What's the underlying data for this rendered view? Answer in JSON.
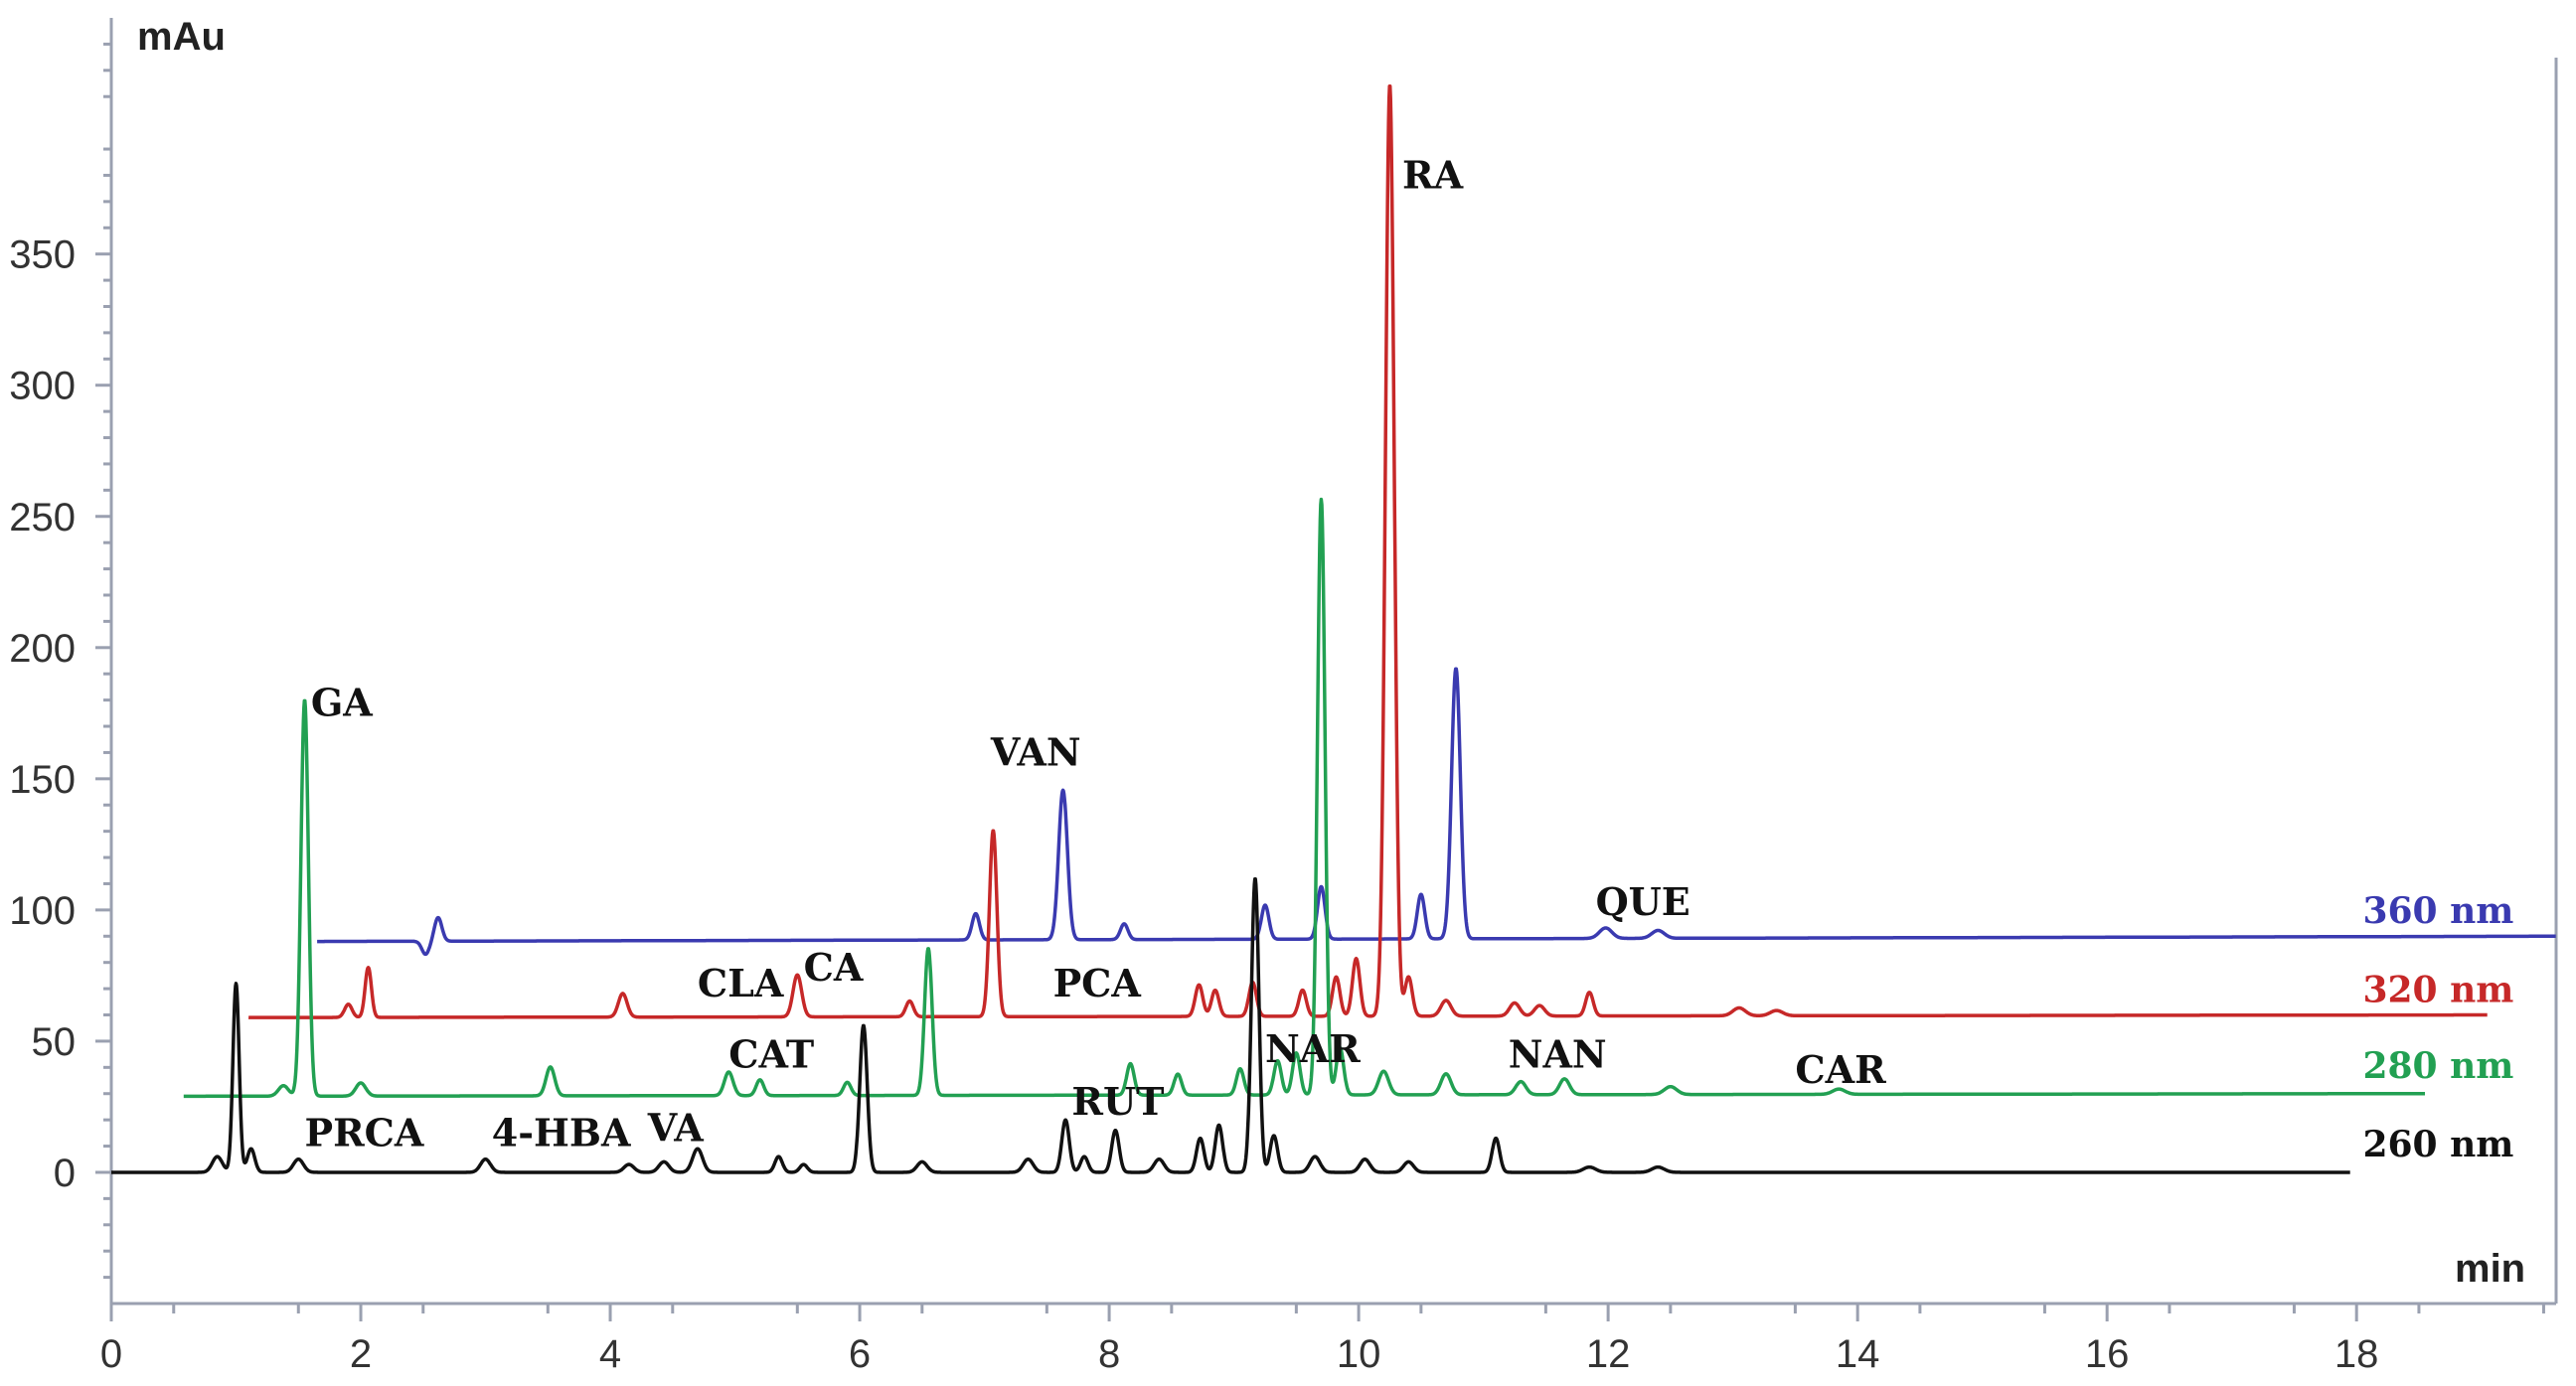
{
  "chart_data": {
    "type": "line",
    "title": "",
    "xlabel": "min",
    "ylabel": "mAu",
    "xlim": [
      0,
      19.6
    ],
    "ylim": [
      -50,
      440
    ],
    "x_ticks": [
      "0",
      "2",
      "4",
      "6",
      "8",
      "10",
      "12",
      "14",
      "16",
      "18"
    ],
    "y_ticks": [
      "0",
      "50",
      "100",
      "150",
      "200",
      "250",
      "300",
      "350"
    ],
    "grid": false,
    "series": [
      {
        "name": "360 nm",
        "color": "#3a3ab0",
        "baseline": 88,
        "end_value": 90,
        "x_range": [
          1.65,
          19.6
        ],
        "peaks": [
          {
            "x": 2.52,
            "y": 83,
            "w": 0.03
          },
          {
            "x": 2.62,
            "y": 97,
            "w": 0.03
          },
          {
            "x": 6.93,
            "y": 98,
            "w": 0.03
          },
          {
            "x": 7.63,
            "y": 145,
            "w": 0.035
          },
          {
            "x": 8.12,
            "y": 94,
            "w": 0.03
          },
          {
            "x": 9.25,
            "y": 101,
            "w": 0.03
          },
          {
            "x": 9.7,
            "y": 108,
            "w": 0.03
          },
          {
            "x": 10.5,
            "y": 105,
            "w": 0.03
          },
          {
            "x": 10.78,
            "y": 191,
            "w": 0.035
          },
          {
            "x": 11.98,
            "y": 92,
            "w": 0.05
          },
          {
            "x": 12.4,
            "y": 91,
            "w": 0.05
          }
        ]
      },
      {
        "name": "320 nm",
        "color": "#c62828",
        "baseline": 59,
        "end_value": 60,
        "x_range": [
          1.1,
          19.05
        ],
        "peaks": [
          {
            "x": 1.9,
            "y": 64,
            "w": 0.03
          },
          {
            "x": 2.06,
            "y": 78,
            "w": 0.025
          },
          {
            "x": 4.1,
            "y": 68,
            "w": 0.035
          },
          {
            "x": 5.5,
            "y": 75,
            "w": 0.035
          },
          {
            "x": 6.4,
            "y": 65,
            "w": 0.03
          },
          {
            "x": 7.07,
            "y": 130,
            "w": 0.03
          },
          {
            "x": 8.72,
            "y": 71,
            "w": 0.03
          },
          {
            "x": 8.85,
            "y": 69,
            "w": 0.03
          },
          {
            "x": 9.15,
            "y": 72,
            "w": 0.03
          },
          {
            "x": 9.55,
            "y": 69,
            "w": 0.03
          },
          {
            "x": 9.82,
            "y": 74,
            "w": 0.03
          },
          {
            "x": 9.98,
            "y": 81,
            "w": 0.03
          },
          {
            "x": 10.25,
            "y": 414,
            "w": 0.035
          },
          {
            "x": 10.4,
            "y": 74,
            "w": 0.03
          },
          {
            "x": 10.7,
            "y": 65,
            "w": 0.04
          },
          {
            "x": 11.25,
            "y": 64,
            "w": 0.04
          },
          {
            "x": 11.45,
            "y": 63,
            "w": 0.04
          },
          {
            "x": 11.85,
            "y": 68,
            "w": 0.03
          },
          {
            "x": 13.05,
            "y": 62,
            "w": 0.05
          },
          {
            "x": 13.35,
            "y": 61,
            "w": 0.05
          }
        ]
      },
      {
        "name": "280 nm",
        "color": "#22a052",
        "baseline": 29,
        "end_value": 30,
        "x_range": [
          0.58,
          18.55
        ],
        "peaks": [
          {
            "x": 1.38,
            "y": 33,
            "w": 0.04
          },
          {
            "x": 1.55,
            "y": 180,
            "w": 0.03
          },
          {
            "x": 2.0,
            "y": 34,
            "w": 0.04
          },
          {
            "x": 3.52,
            "y": 40,
            "w": 0.035
          },
          {
            "x": 4.95,
            "y": 38,
            "w": 0.035
          },
          {
            "x": 5.2,
            "y": 35,
            "w": 0.03
          },
          {
            "x": 5.9,
            "y": 34,
            "w": 0.03
          },
          {
            "x": 6.55,
            "y": 85,
            "w": 0.03
          },
          {
            "x": 8.17,
            "y": 41,
            "w": 0.03
          },
          {
            "x": 8.55,
            "y": 37,
            "w": 0.03
          },
          {
            "x": 9.05,
            "y": 39,
            "w": 0.03
          },
          {
            "x": 9.35,
            "y": 42,
            "w": 0.03
          },
          {
            "x": 9.5,
            "y": 45,
            "w": 0.03
          },
          {
            "x": 9.7,
            "y": 256,
            "w": 0.03
          },
          {
            "x": 9.85,
            "y": 47,
            "w": 0.03
          },
          {
            "x": 10.2,
            "y": 38,
            "w": 0.04
          },
          {
            "x": 10.7,
            "y": 37,
            "w": 0.04
          },
          {
            "x": 11.3,
            "y": 34,
            "w": 0.04
          },
          {
            "x": 11.65,
            "y": 35,
            "w": 0.04
          },
          {
            "x": 12.5,
            "y": 32,
            "w": 0.05
          },
          {
            "x": 13.85,
            "y": 31,
            "w": 0.05
          }
        ]
      },
      {
        "name": "260 nm",
        "color": "#111111",
        "baseline": 0,
        "end_value": 0,
        "x_range": [
          0.0,
          17.95
        ],
        "peaks": [
          {
            "x": 0.85,
            "y": 6,
            "w": 0.04
          },
          {
            "x": 1.0,
            "y": 72,
            "w": 0.025
          },
          {
            "x": 1.12,
            "y": 9,
            "w": 0.03
          },
          {
            "x": 1.5,
            "y": 5,
            "w": 0.04
          },
          {
            "x": 3.0,
            "y": 5,
            "w": 0.04
          },
          {
            "x": 4.15,
            "y": 3,
            "w": 0.04
          },
          {
            "x": 4.43,
            "y": 4,
            "w": 0.04
          },
          {
            "x": 4.7,
            "y": 9,
            "w": 0.04
          },
          {
            "x": 5.35,
            "y": 6,
            "w": 0.03
          },
          {
            "x": 5.55,
            "y": 3,
            "w": 0.03
          },
          {
            "x": 6.03,
            "y": 56,
            "w": 0.03
          },
          {
            "x": 6.5,
            "y": 4,
            "w": 0.04
          },
          {
            "x": 7.35,
            "y": 5,
            "w": 0.04
          },
          {
            "x": 7.65,
            "y": 20,
            "w": 0.03
          },
          {
            "x": 7.8,
            "y": 6,
            "w": 0.03
          },
          {
            "x": 8.05,
            "y": 16,
            "w": 0.03
          },
          {
            "x": 8.4,
            "y": 5,
            "w": 0.04
          },
          {
            "x": 8.73,
            "y": 13,
            "w": 0.03
          },
          {
            "x": 8.88,
            "y": 18,
            "w": 0.03
          },
          {
            "x": 9.17,
            "y": 112,
            "w": 0.03
          },
          {
            "x": 9.32,
            "y": 14,
            "w": 0.03
          },
          {
            "x": 9.65,
            "y": 6,
            "w": 0.04
          },
          {
            "x": 10.05,
            "y": 5,
            "w": 0.04
          },
          {
            "x": 10.4,
            "y": 4,
            "w": 0.04
          },
          {
            "x": 11.1,
            "y": 13,
            "w": 0.03
          },
          {
            "x": 11.85,
            "y": 2,
            "w": 0.05
          },
          {
            "x": 12.4,
            "y": 2,
            "w": 0.05
          }
        ]
      }
    ],
    "trace_labels": [
      {
        "text": "360 nm",
        "series": 0,
        "x": 18.05,
        "y": 95
      },
      {
        "text": "320 nm",
        "series": 1,
        "x": 18.05,
        "y": 65
      },
      {
        "text": "280 nm",
        "series": 2,
        "x": 18.05,
        "y": 36
      },
      {
        "text": "260 nm",
        "series": 3,
        "x": 18.05,
        "y": 6
      }
    ],
    "annotations": [
      {
        "text": "GA",
        "x": 1.6,
        "y": 174
      },
      {
        "text": "VAN",
        "x": 7.05,
        "y": 155
      },
      {
        "text": "RA",
        "x": 10.35,
        "y": 375
      },
      {
        "text": "QUE",
        "x": 11.9,
        "y": 98
      },
      {
        "text": "CLA",
        "x": 4.7,
        "y": 67
      },
      {
        "text": "CA",
        "x": 5.55,
        "y": 73
      },
      {
        "text": "PCA",
        "x": 7.55,
        "y": 67
      },
      {
        "text": "CAT",
        "x": 4.95,
        "y": 40
      },
      {
        "text": "NAR",
        "x": 9.25,
        "y": 42
      },
      {
        "text": "NAN",
        "x": 11.2,
        "y": 40
      },
      {
        "text": "CAR",
        "x": 13.5,
        "y": 34
      },
      {
        "text": "PRCA",
        "x": 1.55,
        "y": 10
      },
      {
        "text": "4-HBA",
        "x": 3.05,
        "y": 10
      },
      {
        "text": "VA",
        "x": 4.3,
        "y": 12
      },
      {
        "text": "RUT",
        "x": 7.7,
        "y": 22
      }
    ]
  }
}
